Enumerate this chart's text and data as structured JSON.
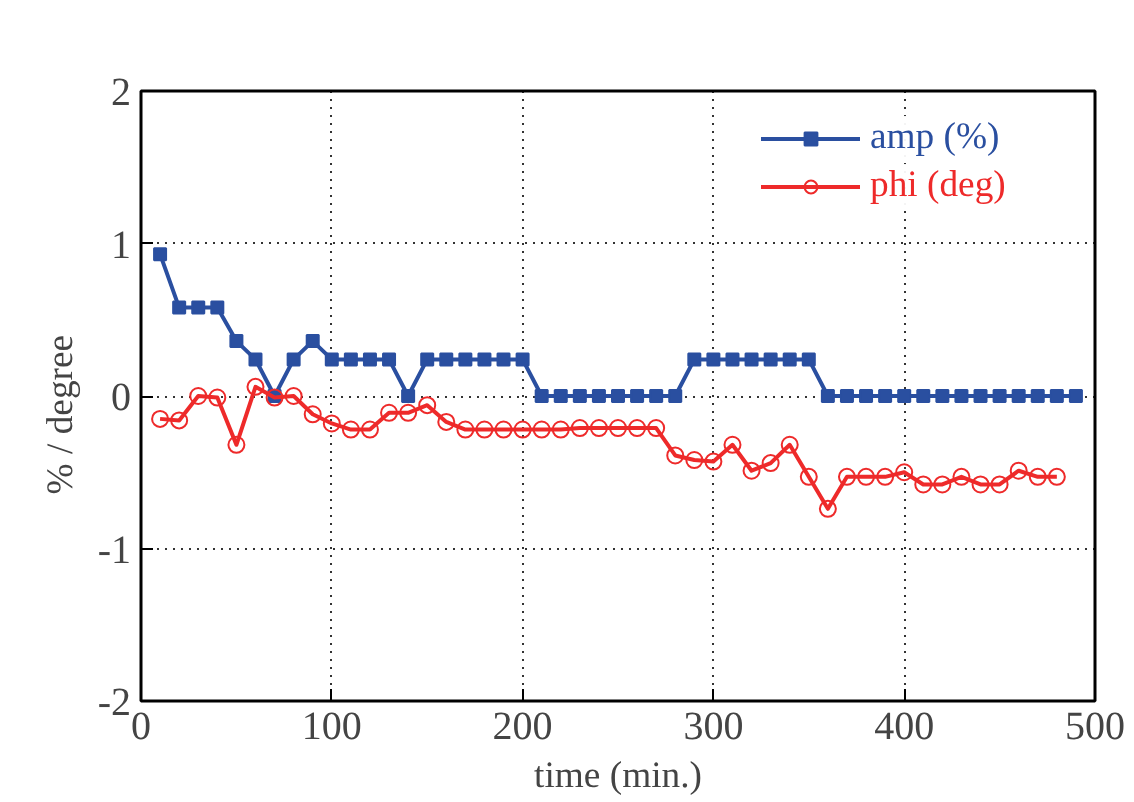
{
  "chart_data": {
    "type": "line",
    "xlabel": "time (min.)",
    "ylabel": "%   /   degree",
    "xlim": [
      0,
      500
    ],
    "ylim": [
      -2,
      2
    ],
    "xticks": [
      0,
      100,
      200,
      300,
      400,
      500
    ],
    "yticks": [
      -2,
      -1,
      0,
      1,
      2
    ],
    "grid": true,
    "legend": "top right",
    "line_style": "solid",
    "series": [
      {
        "name": "amp (%)",
        "color": "#2a4fa0",
        "marker": "square",
        "x": [
          10,
          20,
          30,
          40,
          50,
          60,
          70,
          80,
          90,
          100,
          110,
          120,
          130,
          140,
          150,
          160,
          170,
          180,
          190,
          200,
          210,
          220,
          230,
          240,
          250,
          260,
          270,
          280,
          290,
          300,
          310,
          320,
          330,
          340,
          350,
          360,
          370,
          380,
          390,
          400,
          410,
          420,
          430,
          440,
          450,
          460,
          470,
          480,
          490
        ],
        "values": [
          0.93,
          0.58,
          0.58,
          0.58,
          0.36,
          0.24,
          0,
          0.24,
          0.36,
          0.24,
          0.24,
          0.24,
          0.24,
          0,
          0.24,
          0.24,
          0.24,
          0.24,
          0.24,
          0.24,
          0,
          0,
          0,
          0,
          0,
          0,
          0,
          0,
          0.24,
          0.24,
          0.24,
          0.24,
          0.24,
          0.24,
          0.24,
          0,
          0,
          0,
          0,
          0,
          0,
          0,
          0,
          0,
          0,
          0,
          0,
          0,
          0
        ]
      },
      {
        "name": "phi (deg)",
        "color": "#ee2a2a",
        "marker": "circle",
        "x": [
          10,
          20,
          30,
          40,
          50,
          60,
          70,
          80,
          90,
          100,
          110,
          120,
          130,
          140,
          150,
          160,
          170,
          180,
          190,
          200,
          210,
          220,
          230,
          240,
          250,
          260,
          270,
          280,
          290,
          300,
          310,
          320,
          330,
          340,
          350,
          360,
          370,
          380,
          390,
          400,
          410,
          420,
          430,
          440,
          450,
          460,
          470,
          480
        ],
        "values": [
          -0.15,
          -0.16,
          0,
          -0.01,
          -0.32,
          0.06,
          -0.01,
          0,
          -0.12,
          -0.18,
          -0.22,
          -0.22,
          -0.11,
          -0.11,
          -0.06,
          -0.17,
          -0.22,
          -0.22,
          -0.22,
          -0.22,
          -0.22,
          -0.22,
          -0.21,
          -0.21,
          -0.21,
          -0.21,
          -0.21,
          -0.39,
          -0.42,
          -0.43,
          -0.32,
          -0.49,
          -0.44,
          -0.32,
          -0.53,
          -0.74,
          -0.53,
          -0.53,
          -0.53,
          -0.5,
          -0.58,
          -0.58,
          -0.53,
          -0.58,
          -0.58,
          -0.49,
          -0.53,
          -0.53
        ]
      }
    ]
  }
}
